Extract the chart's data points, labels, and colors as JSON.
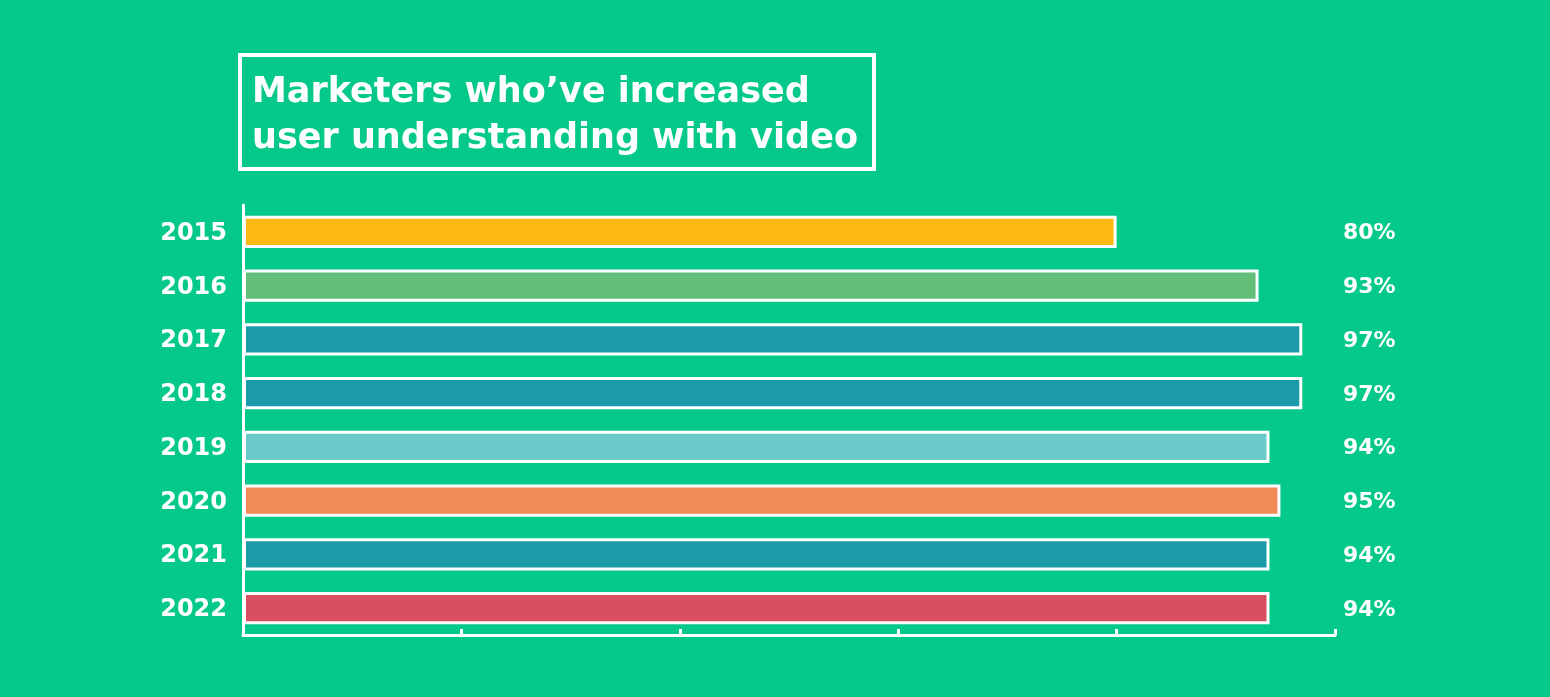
{
  "chart_data": {
    "type": "bar",
    "orientation": "horizontal",
    "title": "Marketers who’ve increased\nuser understanding with video",
    "categories": [
      "2015",
      "2016",
      "2017",
      "2018",
      "2019",
      "2020",
      "2021",
      "2022"
    ],
    "values": [
      80,
      93,
      97,
      97,
      94,
      95,
      94,
      94
    ],
    "colors": [
      "#fdb913",
      "#62bf7a",
      "#1b9aaa",
      "#1b9aaa",
      "#6ccacb",
      "#f08a56",
      "#1b9aaa",
      "#d84f62"
    ],
    "value_labels": [
      "80%",
      "93%",
      "97%",
      "97%",
      "94%",
      "95%",
      "94%",
      "94%"
    ],
    "xlim": [
      0,
      100
    ],
    "xticks": [
      {
        "value": 0,
        "label": null
      },
      {
        "value": 20,
        "label": null
      },
      {
        "value": 40,
        "label": null
      },
      {
        "value": 60,
        "label": null
      },
      {
        "value": 80,
        "label": null
      },
      {
        "value": 100,
        "label": null
      }
    ],
    "tick_labels": "y"
  }
}
